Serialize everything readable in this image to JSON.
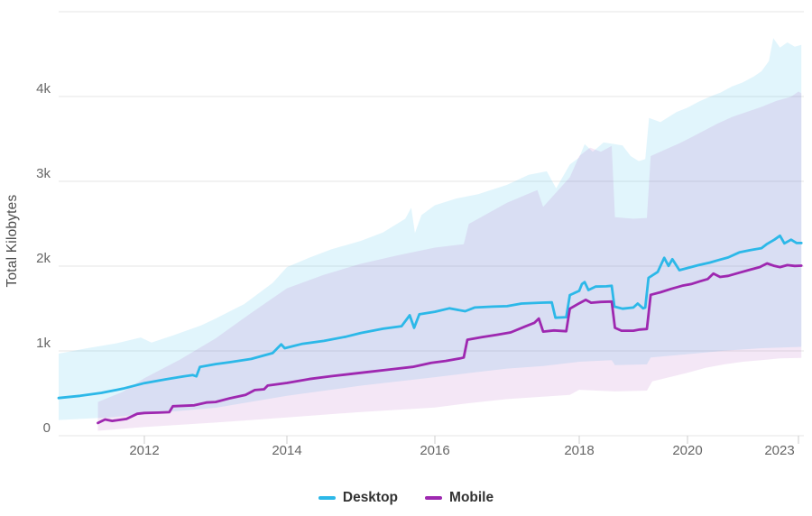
{
  "chart_data": {
    "type": "line",
    "title": "",
    "xlabel": "",
    "ylabel": "Total Kilobytes",
    "y_unit": "kilobytes",
    "ylim": [
      0,
      5000
    ],
    "grid": true,
    "legend_position": "bottom",
    "y_ticks": [
      {
        "value": 0,
        "label": "0"
      },
      {
        "value": 1000,
        "label": "1k"
      },
      {
        "value": 2000,
        "label": "2k"
      },
      {
        "value": 3000,
        "label": "3k"
      },
      {
        "value": 4000,
        "label": "4k"
      },
      {
        "value": 5000,
        "label": ""
      }
    ],
    "x_ticks": [
      {
        "value": 2012,
        "label": "2012"
      },
      {
        "value": 2014,
        "label": "2014"
      },
      {
        "value": 2016,
        "label": "2016"
      },
      {
        "value": 2018,
        "label": "2018"
      },
      {
        "value": 2020,
        "label": "2020"
      },
      {
        "value": 2023,
        "label": "2023"
      }
    ],
    "series": [
      {
        "name": "Desktop",
        "color": "#2cb8e8",
        "band_fill": "rgba(44,184,232,0.14)",
        "points": [
          [
            2010.8,
            445
          ],
          [
            2011.1,
            470
          ],
          [
            2011.4,
            505
          ],
          [
            2011.7,
            555
          ],
          [
            2012,
            620
          ],
          [
            2012.3,
            665
          ],
          [
            2012.55,
            700
          ],
          [
            2012.68,
            715
          ],
          [
            2012.73,
            700
          ],
          [
            2012.78,
            812
          ],
          [
            2013,
            845
          ],
          [
            2013.2,
            867
          ],
          [
            2013.5,
            905
          ],
          [
            2013.8,
            975
          ],
          [
            2013.92,
            1078
          ],
          [
            2013.97,
            1032
          ],
          [
            2014.2,
            1082
          ],
          [
            2014.5,
            1118
          ],
          [
            2014.8,
            1168
          ],
          [
            2015,
            1212
          ],
          [
            2015.3,
            1262
          ],
          [
            2015.55,
            1292
          ],
          [
            2015.66,
            1420
          ],
          [
            2015.72,
            1272
          ],
          [
            2015.79,
            1432
          ],
          [
            2016,
            1462
          ],
          [
            2016.2,
            1502
          ],
          [
            2016.42,
            1468
          ],
          [
            2016.55,
            1512
          ],
          [
            2016.8,
            1522
          ],
          [
            2017,
            1528
          ],
          [
            2017.2,
            1558
          ],
          [
            2017.45,
            1568
          ],
          [
            2017.62,
            1572
          ],
          [
            2017.67,
            1392
          ],
          [
            2017.82,
            1398
          ],
          [
            2017.87,
            1658
          ],
          [
            2018,
            1708
          ],
          [
            2018.05,
            1788
          ],
          [
            2018.1,
            1812
          ],
          [
            2018.17,
            1718
          ],
          [
            2018.3,
            1758
          ],
          [
            2018.5,
            1762
          ],
          [
            2018.6,
            1768
          ],
          [
            2018.65,
            1522
          ],
          [
            2018.8,
            1498
          ],
          [
            2019,
            1512
          ],
          [
            2019.08,
            1558
          ],
          [
            2019.18,
            1502
          ],
          [
            2019.22,
            1512
          ],
          [
            2019.28,
            1862
          ],
          [
            2019.45,
            1932
          ],
          [
            2019.57,
            2098
          ],
          [
            2019.65,
            2002
          ],
          [
            2019.72,
            2082
          ],
          [
            2019.85,
            1952
          ],
          [
            2020,
            1978
          ],
          [
            2020.3,
            2012
          ],
          [
            2020.6,
            2042
          ],
          [
            2020.85,
            2072
          ],
          [
            2021.1,
            2102
          ],
          [
            2021.4,
            2162
          ],
          [
            2021.7,
            2188
          ],
          [
            2022,
            2212
          ],
          [
            2022.15,
            2262
          ],
          [
            2022.35,
            2312
          ],
          [
            2022.5,
            2358
          ],
          [
            2022.62,
            2268
          ],
          [
            2022.8,
            2312
          ],
          [
            2022.95,
            2272
          ],
          [
            2023.1,
            2272
          ]
        ],
        "band_upper": [
          [
            2010.8,
            968
          ],
          [
            2011.2,
            1032
          ],
          [
            2011.6,
            1088
          ],
          [
            2011.95,
            1158
          ],
          [
            2012.1,
            1098
          ],
          [
            2012.4,
            1182
          ],
          [
            2012.8,
            1302
          ],
          [
            2013,
            1382
          ],
          [
            2013.4,
            1552
          ],
          [
            2013.8,
            1802
          ],
          [
            2014,
            1988
          ],
          [
            2014.3,
            2098
          ],
          [
            2014.6,
            2198
          ],
          [
            2015,
            2298
          ],
          [
            2015.3,
            2398
          ],
          [
            2015.6,
            2558
          ],
          [
            2015.68,
            2688
          ],
          [
            2015.73,
            2392
          ],
          [
            2015.82,
            2602
          ],
          [
            2016,
            2718
          ],
          [
            2016.3,
            2798
          ],
          [
            2016.6,
            2848
          ],
          [
            2017,
            2958
          ],
          [
            2017.3,
            3078
          ],
          [
            2017.55,
            3118
          ],
          [
            2017.68,
            2918
          ],
          [
            2017.87,
            3198
          ],
          [
            2018,
            3282
          ],
          [
            2018.1,
            3438
          ],
          [
            2018.25,
            3348
          ],
          [
            2018.45,
            3458
          ],
          [
            2018.65,
            3438
          ],
          [
            2018.8,
            3422
          ],
          [
            2018.95,
            3298
          ],
          [
            2019.1,
            3238
          ],
          [
            2019.22,
            3262
          ],
          [
            2019.29,
            3748
          ],
          [
            2019.5,
            3698
          ],
          [
            2019.8,
            3818
          ],
          [
            2020,
            3868
          ],
          [
            2020.3,
            3938
          ],
          [
            2020.6,
            3998
          ],
          [
            2020.9,
            4048
          ],
          [
            2021.2,
            4118
          ],
          [
            2021.5,
            4168
          ],
          [
            2021.8,
            4238
          ],
          [
            2022,
            4298
          ],
          [
            2022.2,
            4418
          ],
          [
            2022.32,
            4688
          ],
          [
            2022.5,
            4578
          ],
          [
            2022.7,
            4638
          ],
          [
            2022.9,
            4588
          ],
          [
            2023.1,
            4608
          ]
        ],
        "band_lower": [
          [
            2010.8,
            185
          ],
          [
            2011.5,
            215
          ],
          [
            2012,
            255
          ],
          [
            2013,
            330
          ],
          [
            2014,
            470
          ],
          [
            2015,
            590
          ],
          [
            2016,
            690
          ],
          [
            2016.5,
            742
          ],
          [
            2017,
            792
          ],
          [
            2017.5,
            822
          ],
          [
            2018,
            872
          ],
          [
            2018.6,
            892
          ],
          [
            2018.66,
            832
          ],
          [
            2019.25,
            842
          ],
          [
            2019.32,
            922
          ],
          [
            2020,
            962
          ],
          [
            2021,
            1002
          ],
          [
            2022,
            1032
          ],
          [
            2023.1,
            1048
          ]
        ]
      },
      {
        "name": "Mobile",
        "color": "#9e28b0",
        "band_fill": "rgba(158,40,176,0.11)",
        "points": [
          [
            2011.35,
            150
          ],
          [
            2011.45,
            192
          ],
          [
            2011.55,
            175
          ],
          [
            2011.75,
            198
          ],
          [
            2011.9,
            258
          ],
          [
            2012,
            268
          ],
          [
            2012.2,
            272
          ],
          [
            2012.35,
            278
          ],
          [
            2012.4,
            348
          ],
          [
            2012.7,
            358
          ],
          [
            2012.87,
            392
          ],
          [
            2013,
            398
          ],
          [
            2013.2,
            442
          ],
          [
            2013.42,
            482
          ],
          [
            2013.55,
            538
          ],
          [
            2013.68,
            548
          ],
          [
            2013.73,
            592
          ],
          [
            2014,
            622
          ],
          [
            2014.3,
            668
          ],
          [
            2014.6,
            702
          ],
          [
            2014.9,
            732
          ],
          [
            2015.1,
            752
          ],
          [
            2015.4,
            782
          ],
          [
            2015.7,
            812
          ],
          [
            2015.95,
            858
          ],
          [
            2016.15,
            882
          ],
          [
            2016.35,
            912
          ],
          [
            2016.4,
            922
          ],
          [
            2016.45,
            1132
          ],
          [
            2016.65,
            1162
          ],
          [
            2016.85,
            1188
          ],
          [
            2017.05,
            1218
          ],
          [
            2017.25,
            1288
          ],
          [
            2017.38,
            1332
          ],
          [
            2017.44,
            1382
          ],
          [
            2017.5,
            1228
          ],
          [
            2017.65,
            1242
          ],
          [
            2017.82,
            1232
          ],
          [
            2017.87,
            1498
          ],
          [
            2018,
            1562
          ],
          [
            2018.12,
            1602
          ],
          [
            2018.22,
            1568
          ],
          [
            2018.4,
            1578
          ],
          [
            2018.6,
            1582
          ],
          [
            2018.66,
            1272
          ],
          [
            2018.78,
            1238
          ],
          [
            2019,
            1238
          ],
          [
            2019.12,
            1252
          ],
          [
            2019.25,
            1258
          ],
          [
            2019.32,
            1662
          ],
          [
            2019.5,
            1692
          ],
          [
            2019.7,
            1732
          ],
          [
            2019.9,
            1768
          ],
          [
            2020.1,
            1788
          ],
          [
            2020.35,
            1822
          ],
          [
            2020.55,
            1848
          ],
          [
            2020.7,
            1912
          ],
          [
            2020.88,
            1872
          ],
          [
            2021.1,
            1885
          ],
          [
            2021.4,
            1922
          ],
          [
            2021.7,
            1958
          ],
          [
            2021.95,
            1988
          ],
          [
            2022.15,
            2032
          ],
          [
            2022.35,
            2002
          ],
          [
            2022.5,
            1988
          ],
          [
            2022.7,
            2012
          ],
          [
            2022.9,
            2002
          ],
          [
            2023.1,
            2005
          ]
        ],
        "band_upper": [
          [
            2011.35,
            398
          ],
          [
            2011.7,
            518
          ],
          [
            2012,
            678
          ],
          [
            2012.5,
            898
          ],
          [
            2013,
            1148
          ],
          [
            2013.5,
            1448
          ],
          [
            2014,
            1738
          ],
          [
            2014.5,
            1898
          ],
          [
            2015,
            2028
          ],
          [
            2015.5,
            2128
          ],
          [
            2016,
            2218
          ],
          [
            2016.4,
            2258
          ],
          [
            2016.47,
            2498
          ],
          [
            2017,
            2748
          ],
          [
            2017.42,
            2898
          ],
          [
            2017.5,
            2698
          ],
          [
            2017.87,
            3048
          ],
          [
            2018,
            3298
          ],
          [
            2018.2,
            3398
          ],
          [
            2018.4,
            3348
          ],
          [
            2018.6,
            3418
          ],
          [
            2018.66,
            2578
          ],
          [
            2019,
            2558
          ],
          [
            2019.25,
            2568
          ],
          [
            2019.32,
            3298
          ],
          [
            2019.6,
            3378
          ],
          [
            2019.85,
            3448
          ],
          [
            2020.1,
            3518
          ],
          [
            2020.45,
            3598
          ],
          [
            2020.8,
            3678
          ],
          [
            2021.2,
            3758
          ],
          [
            2021.6,
            3818
          ],
          [
            2022,
            3878
          ],
          [
            2022.4,
            3948
          ],
          [
            2022.8,
            3998
          ],
          [
            2023,
            4058
          ],
          [
            2023.1,
            4038
          ]
        ],
        "band_lower": [
          [
            2011.35,
            58
          ],
          [
            2012,
            102
          ],
          [
            2013,
            155
          ],
          [
            2014,
            215
          ],
          [
            2015,
            280
          ],
          [
            2016,
            332
          ],
          [
            2016.45,
            382
          ],
          [
            2017,
            432
          ],
          [
            2017.87,
            482
          ],
          [
            2018,
            542
          ],
          [
            2018.66,
            522
          ],
          [
            2019.25,
            532
          ],
          [
            2019.35,
            642
          ],
          [
            2020,
            742
          ],
          [
            2020.5,
            802
          ],
          [
            2021,
            842
          ],
          [
            2021.5,
            872
          ],
          [
            2022,
            892
          ],
          [
            2022.5,
            912
          ],
          [
            2023.1,
            918
          ]
        ]
      }
    ]
  },
  "colors": {
    "gridline": "#e6e6e6",
    "axis_tick": "#cccccc",
    "tick_label": "#666666",
    "axis_title": "#4d4d4d",
    "legend_text": "#333333"
  }
}
